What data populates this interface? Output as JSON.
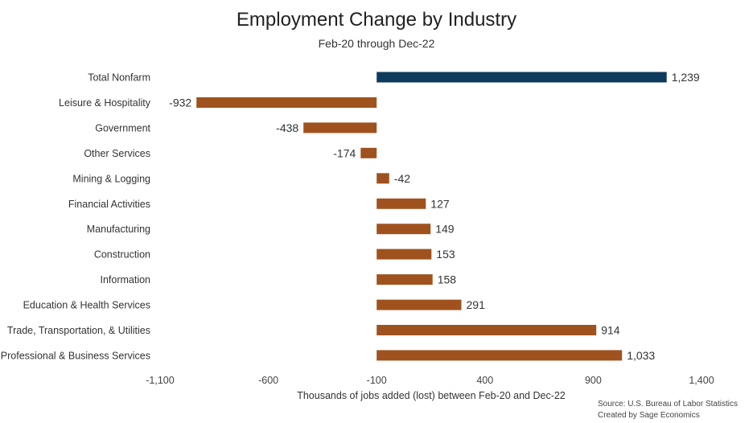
{
  "chart_data": {
    "type": "bar",
    "orientation": "horizontal",
    "title": "Employment Change by Industry",
    "subtitle": "Feb-20 through Dec-22",
    "xlabel": "Thousands of jobs added (lost) between Feb-20 and Dec-22",
    "ylabel": "",
    "xlim": [
      -1100,
      1400
    ],
    "xticks": [
      -1100,
      -600,
      -100,
      400,
      900,
      1400
    ],
    "xtick_labels": [
      "-1,100",
      "-600",
      "-100",
      "400",
      "900",
      "1,400"
    ],
    "grid": false,
    "legend": "none",
    "baseline": -100,
    "categories": [
      "Total Nonfarm",
      "Leisure & Hospitality",
      "Government",
      "Other Services",
      "Mining & Logging",
      "Financial Activities",
      "Manufacturing",
      "Construction",
      "Information",
      "Education & Health Services",
      "Trade, Transportation, & Utilities",
      "Professional & Business Services"
    ],
    "values": [
      1239,
      -932,
      -438,
      -174,
      -42,
      127,
      149,
      153,
      158,
      291,
      914,
      1033
    ],
    "value_labels": [
      "1,239",
      "-932",
      "-438",
      "-174",
      "-42",
      "127",
      "149",
      "153",
      "158",
      "291",
      "914",
      "1,033"
    ],
    "colors": {
      "total": "#0e3a5c",
      "industry": "#a0521e"
    }
  },
  "source_lines": [
    "Source: U.S. Bureau of Labor Statistics",
    "Created by Sage Economics"
  ]
}
